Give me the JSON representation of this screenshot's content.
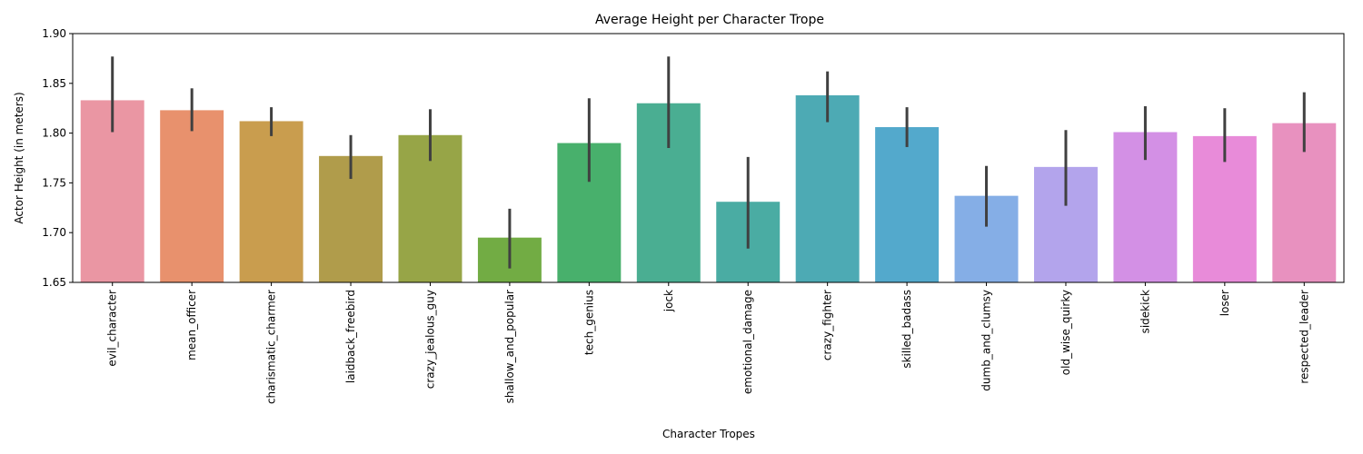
{
  "chart_data": {
    "type": "bar",
    "title": "Average Height per Character Trope",
    "xlabel": "Character Tropes",
    "ylabel": "Actor Height (in meters)",
    "ylim": [
      1.65,
      1.9
    ],
    "yticks": [
      1.65,
      1.7,
      1.75,
      1.8,
      1.85,
      1.9
    ],
    "ytick_labels": [
      "1.65",
      "1.70",
      "1.75",
      "1.80",
      "1.85",
      "1.90"
    ],
    "grid": false,
    "categories": [
      "evil_character",
      "mean_officer",
      "charismatic_charmer",
      "laidback_freebird",
      "crazy_jealous_guy",
      "shallow_and_popular",
      "tech_genius",
      "jock",
      "emotional_damage",
      "crazy_fighter",
      "skilled_badass",
      "dumb_and_clumsy",
      "old_wise_quirky",
      "sidekick",
      "loser",
      "respected_leader"
    ],
    "values": [
      1.833,
      1.823,
      1.812,
      1.777,
      1.798,
      1.695,
      1.79,
      1.83,
      1.731,
      1.838,
      1.806,
      1.737,
      1.766,
      1.801,
      1.797,
      1.81
    ],
    "error_low": [
      1.801,
      1.802,
      1.797,
      1.754,
      1.772,
      1.664,
      1.751,
      1.785,
      1.684,
      1.811,
      1.786,
      1.706,
      1.727,
      1.773,
      1.771,
      1.781
    ],
    "error_high": [
      1.877,
      1.845,
      1.826,
      1.798,
      1.824,
      1.724,
      1.835,
      1.877,
      1.776,
      1.862,
      1.826,
      1.767,
      1.803,
      1.827,
      1.825,
      1.841
    ],
    "colors": [
      "#ea96a3",
      "#e8916d",
      "#c99d4e",
      "#b09c4b",
      "#97a547",
      "#72ac44",
      "#48b06c",
      "#4aae92",
      "#4aaca3",
      "#4daab4",
      "#53a9cc",
      "#85aee6",
      "#b3a4ec",
      "#d390e5",
      "#e88bd9",
      "#e891bf"
    ],
    "error_color": "#404040"
  }
}
